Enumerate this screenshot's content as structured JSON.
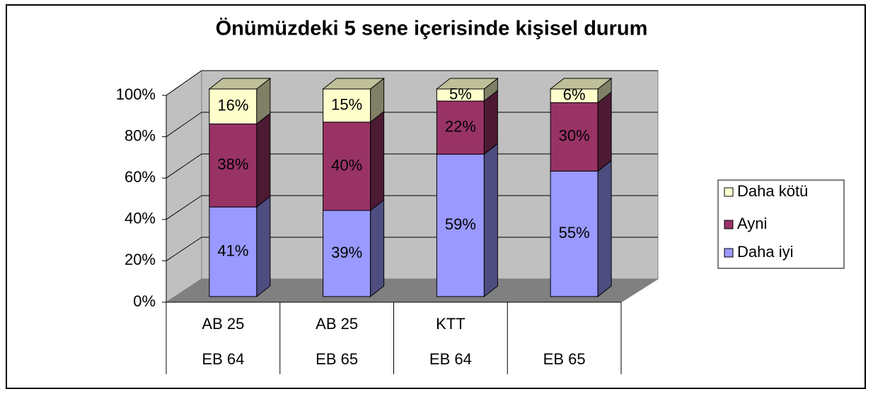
{
  "chart_data": {
    "type": "bar",
    "stacking": "percent",
    "title": "Önümüzdeki 5 sene içerisinde kişisel durum",
    "categories": [
      [
        "AB 25",
        "EB 64"
      ],
      [
        "AB 25",
        "EB 65"
      ],
      [
        "KTT",
        "EB 64"
      ],
      [
        null,
        "EB 65"
      ]
    ],
    "series": [
      {
        "name": "Daha iyi",
        "color": "#9999ff",
        "values": [
          41,
          39,
          59,
          55
        ],
        "value_labels": [
          "41%",
          "39%",
          "59%",
          "55%"
        ]
      },
      {
        "name": "Ayni",
        "color": "#993366",
        "values": [
          38,
          40,
          22,
          30
        ],
        "value_labels": [
          "38%",
          "40%",
          "22%",
          "30%"
        ]
      },
      {
        "name": "Daha kötü",
        "color": "#ffffcc",
        "values": [
          16,
          15,
          5,
          6
        ],
        "value_labels": [
          "16%",
          "15%",
          "5%",
          "6%"
        ]
      }
    ],
    "ylim": [
      0,
      100
    ],
    "yticks": [
      {
        "value": 0,
        "label": "0%"
      },
      {
        "value": 20,
        "label": "20%"
      },
      {
        "value": 40,
        "label": "40%"
      },
      {
        "value": 60,
        "label": "60%"
      },
      {
        "value": 80,
        "label": "80%"
      },
      {
        "value": 100,
        "label": "100%"
      }
    ],
    "grid": true,
    "legend": "right"
  }
}
